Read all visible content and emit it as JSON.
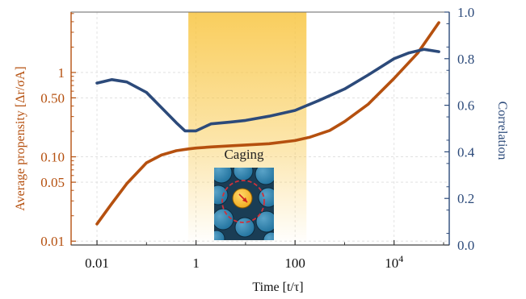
{
  "chart_data": {
    "type": "line",
    "xlabel": "Time [t/τ]",
    "ylabel_left": "Average propensity [Δr/σA]",
    "ylabel_right": "Correlation",
    "x_scale": "log",
    "y_left_scale": "log",
    "xlim": [
      0.003,
      130000
    ],
    "ylim_left": [
      0.009,
      5.2
    ],
    "ylim_right": [
      0.0,
      1.0
    ],
    "x_ticks": [
      {
        "value": 0.01,
        "label": "0.01"
      },
      {
        "value": 1,
        "label": "1"
      },
      {
        "value": 100,
        "label": "100"
      },
      {
        "value": 10000,
        "label": "10",
        "sup": "4"
      }
    ],
    "y_left_ticks": [
      {
        "value": 0.01,
        "label": "0.01"
      },
      {
        "value": 0.05,
        "label": "0.05"
      },
      {
        "value": 0.1,
        "label": "0.10"
      },
      {
        "value": 0.5,
        "label": "0.50"
      },
      {
        "value": 1,
        "label": "1"
      }
    ],
    "y_right_ticks": [
      {
        "value": 0.0,
        "label": "0.0"
      },
      {
        "value": 0.2,
        "label": "0.2"
      },
      {
        "value": 0.4,
        "label": "0.4"
      },
      {
        "value": 0.6,
        "label": "0.6"
      },
      {
        "value": 0.8,
        "label": "0.8"
      },
      {
        "value": 1.0,
        "label": "1.0"
      }
    ],
    "grid": true,
    "series": [
      {
        "axis": "left",
        "color": "#b5500f",
        "x": [
          0.01,
          0.02,
          0.04,
          0.1,
          0.2,
          0.4,
          0.7,
          1,
          2,
          5,
          10,
          30,
          100,
          200,
          500,
          1000,
          3000,
          10000,
          30000,
          80000
        ],
        "y": [
          0.016,
          0.028,
          0.048,
          0.085,
          0.105,
          0.118,
          0.124,
          0.127,
          0.131,
          0.135,
          0.138,
          0.143,
          0.156,
          0.171,
          0.205,
          0.262,
          0.42,
          0.85,
          1.7,
          3.9
        ]
      },
      {
        "axis": "right",
        "color": "#2c4a7a",
        "x": [
          0.01,
          0.02,
          0.04,
          0.1,
          0.2,
          0.4,
          0.6,
          1,
          2,
          5,
          10,
          30,
          100,
          300,
          1000,
          3000,
          10000,
          20000,
          40000,
          80000
        ],
        "y": [
          0.695,
          0.71,
          0.7,
          0.655,
          0.59,
          0.525,
          0.49,
          0.49,
          0.52,
          0.528,
          0.535,
          0.553,
          0.578,
          0.62,
          0.67,
          0.73,
          0.8,
          0.825,
          0.84,
          0.83
        ]
      }
    ],
    "shaded_region": {
      "x_range": [
        0.7,
        170
      ],
      "color": "#f8c540"
    },
    "annotations": [
      {
        "text": "Caging"
      }
    ]
  }
}
